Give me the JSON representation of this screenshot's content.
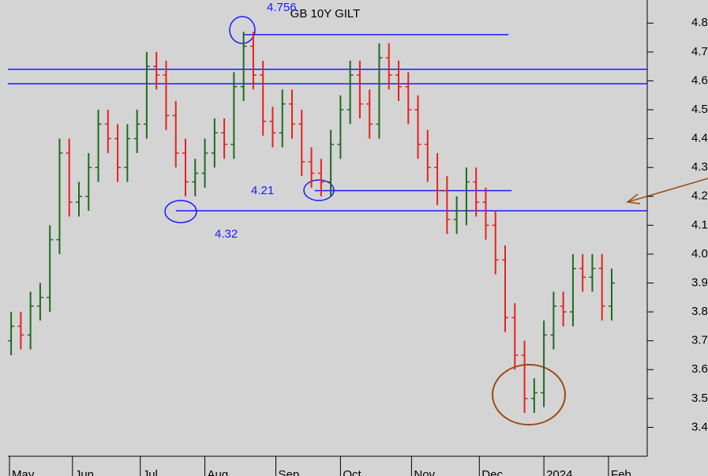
{
  "chart_data": {
    "type": "ohlc",
    "title": "GB 10Y GILT",
    "up_color": "#1f6b1f",
    "down_color": "#e8211e",
    "level_color": "#1a1aff",
    "annotation_color": "#9a4a14",
    "x": [
      1,
      4,
      7,
      10,
      13,
      16,
      19,
      22,
      25,
      28,
      31,
      34,
      37,
      40,
      43,
      46,
      49,
      52,
      55,
      58,
      61,
      64,
      67,
      70,
      73,
      76,
      79,
      82,
      85,
      88,
      91,
      94,
      97,
      100,
      103,
      106,
      109,
      112,
      115,
      118,
      121,
      124,
      127,
      130,
      133,
      136,
      139,
      142,
      145,
      148,
      151,
      154,
      157,
      160,
      163,
      166,
      169,
      172,
      175,
      178,
      181,
      184,
      187
    ],
    "open": [
      3.7,
      3.75,
      3.72,
      3.82,
      3.85,
      4.05,
      4.35,
      4.18,
      4.2,
      4.3,
      4.45,
      4.4,
      4.3,
      4.4,
      4.45,
      4.65,
      4.62,
      4.48,
      4.35,
      4.25,
      4.28,
      4.35,
      4.42,
      4.38,
      4.58,
      4.72,
      4.62,
      4.46,
      4.42,
      4.52,
      4.45,
      4.32,
      4.28,
      4.25,
      4.38,
      4.5,
      4.62,
      4.52,
      4.45,
      4.68,
      4.62,
      4.58,
      4.5,
      4.38,
      4.3,
      4.22,
      4.12,
      4.15,
      4.25,
      4.18,
      4.1,
      3.98,
      3.78,
      3.65,
      3.5,
      3.52,
      3.72,
      3.82,
      3.8,
      3.95,
      3.92,
      3.95,
      3.82
    ],
    "high": [
      3.8,
      3.8,
      3.87,
      3.9,
      4.1,
      4.4,
      4.4,
      4.25,
      4.35,
      4.5,
      4.5,
      4.45,
      4.45,
      4.5,
      4.7,
      4.7,
      4.67,
      4.53,
      4.4,
      4.33,
      4.4,
      4.47,
      4.47,
      4.63,
      4.77,
      4.77,
      4.67,
      4.51,
      4.57,
      4.57,
      4.5,
      4.37,
      4.33,
      4.43,
      4.55,
      4.67,
      4.67,
      4.57,
      4.73,
      4.73,
      4.67,
      4.63,
      4.55,
      4.43,
      4.35,
      4.27,
      4.2,
      4.3,
      4.3,
      4.23,
      4.15,
      4.03,
      3.83,
      3.7,
      3.57,
      3.77,
      3.87,
      3.87,
      4.0,
      4.0,
      4.0,
      4.0,
      3.95
    ],
    "low": [
      3.65,
      3.67,
      3.67,
      3.77,
      3.8,
      4.0,
      4.13,
      4.13,
      4.15,
      4.25,
      4.35,
      4.25,
      4.25,
      4.35,
      4.4,
      4.57,
      4.43,
      4.3,
      4.2,
      4.2,
      4.23,
      4.3,
      4.33,
      4.33,
      4.53,
      4.57,
      4.41,
      4.37,
      4.37,
      4.4,
      4.27,
      4.23,
      4.2,
      4.2,
      4.33,
      4.45,
      4.47,
      4.4,
      4.4,
      4.57,
      4.53,
      4.45,
      4.33,
      4.25,
      4.17,
      4.07,
      4.07,
      4.1,
      4.13,
      4.05,
      3.93,
      3.73,
      3.6,
      3.45,
      3.45,
      3.47,
      3.67,
      3.75,
      3.75,
      3.87,
      3.87,
      3.77,
      3.77
    ],
    "close": [
      3.75,
      3.72,
      3.82,
      3.85,
      4.05,
      4.35,
      4.18,
      4.2,
      4.3,
      4.45,
      4.4,
      4.3,
      4.4,
      4.45,
      4.65,
      4.62,
      4.48,
      4.35,
      4.25,
      4.28,
      4.35,
      4.42,
      4.38,
      4.58,
      4.72,
      4.62,
      4.46,
      4.42,
      4.52,
      4.45,
      4.32,
      4.28,
      4.25,
      4.38,
      4.5,
      4.62,
      4.52,
      4.45,
      4.68,
      4.62,
      4.58,
      4.5,
      4.38,
      4.3,
      4.22,
      4.12,
      4.15,
      4.25,
      4.18,
      4.1,
      3.98,
      3.78,
      3.65,
      3.5,
      3.52,
      3.72,
      3.82,
      3.8,
      3.95,
      3.92,
      3.95,
      3.82,
      3.9
    ],
    "xlim": [
      0,
      198
    ],
    "xticks": [
      {
        "value": 0.5,
        "label": "May"
      },
      {
        "value": 20,
        "label": "Jun"
      },
      {
        "value": 41,
        "label": "Jul"
      },
      {
        "value": 61,
        "label": "Aug"
      },
      {
        "value": 83,
        "label": "Sep"
      },
      {
        "value": 103,
        "label": "Oct"
      },
      {
        "value": 125,
        "label": "Nov"
      },
      {
        "value": 146,
        "label": "Dec"
      },
      {
        "value": 166,
        "label": "2024"
      },
      {
        "value": 186,
        "label": "Feb"
      }
    ],
    "ylim": [
      3.3,
      4.88
    ],
    "yticks": [
      3.4,
      3.5,
      3.6,
      3.7,
      3.8,
      3.9,
      {
        "value": 4,
        "label": "4.0"
      },
      4.1,
      4.2,
      4.3,
      4.4,
      4.5,
      4.6,
      4.7,
      4.8
    ],
    "levels": [
      {
        "y": 4.76,
        "x": [
          73,
          155
        ]
      },
      {
        "y": 4.64,
        "x": [
          0,
          198
        ]
      },
      {
        "y": 4.59,
        "x": [
          0,
          198
        ]
      },
      {
        "y": 4.22,
        "x": [
          95,
          156
        ]
      },
      {
        "y": 4.15,
        "x": [
          52,
          198
        ]
      }
    ],
    "annotations": [
      "4.756",
      "4.21",
      "4.32"
    ]
  }
}
